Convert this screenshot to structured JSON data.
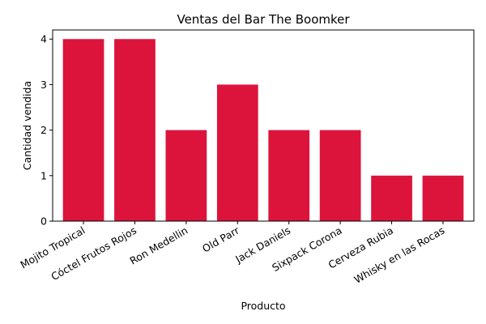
{
  "chart_data": {
    "type": "bar",
    "title": "Ventas del Bar The Boomker",
    "xlabel": "Producto",
    "ylabel": "Cantidad vendida",
    "categories": [
      "Mojito Tropical",
      "Cóctel Frutos Rojos",
      "Ron Medellin",
      "Old Parr",
      "Jack Daniels",
      "Sixpack Corona",
      "Cerveza Rubia",
      "Whisky en las Rocas"
    ],
    "values": [
      4,
      4,
      2,
      3,
      2,
      2,
      1,
      1
    ],
    "ylim": [
      0,
      4.2
    ],
    "yticks": [
      0,
      1,
      2,
      3,
      4
    ],
    "bar_color": "#dc143c",
    "grid": false
  }
}
